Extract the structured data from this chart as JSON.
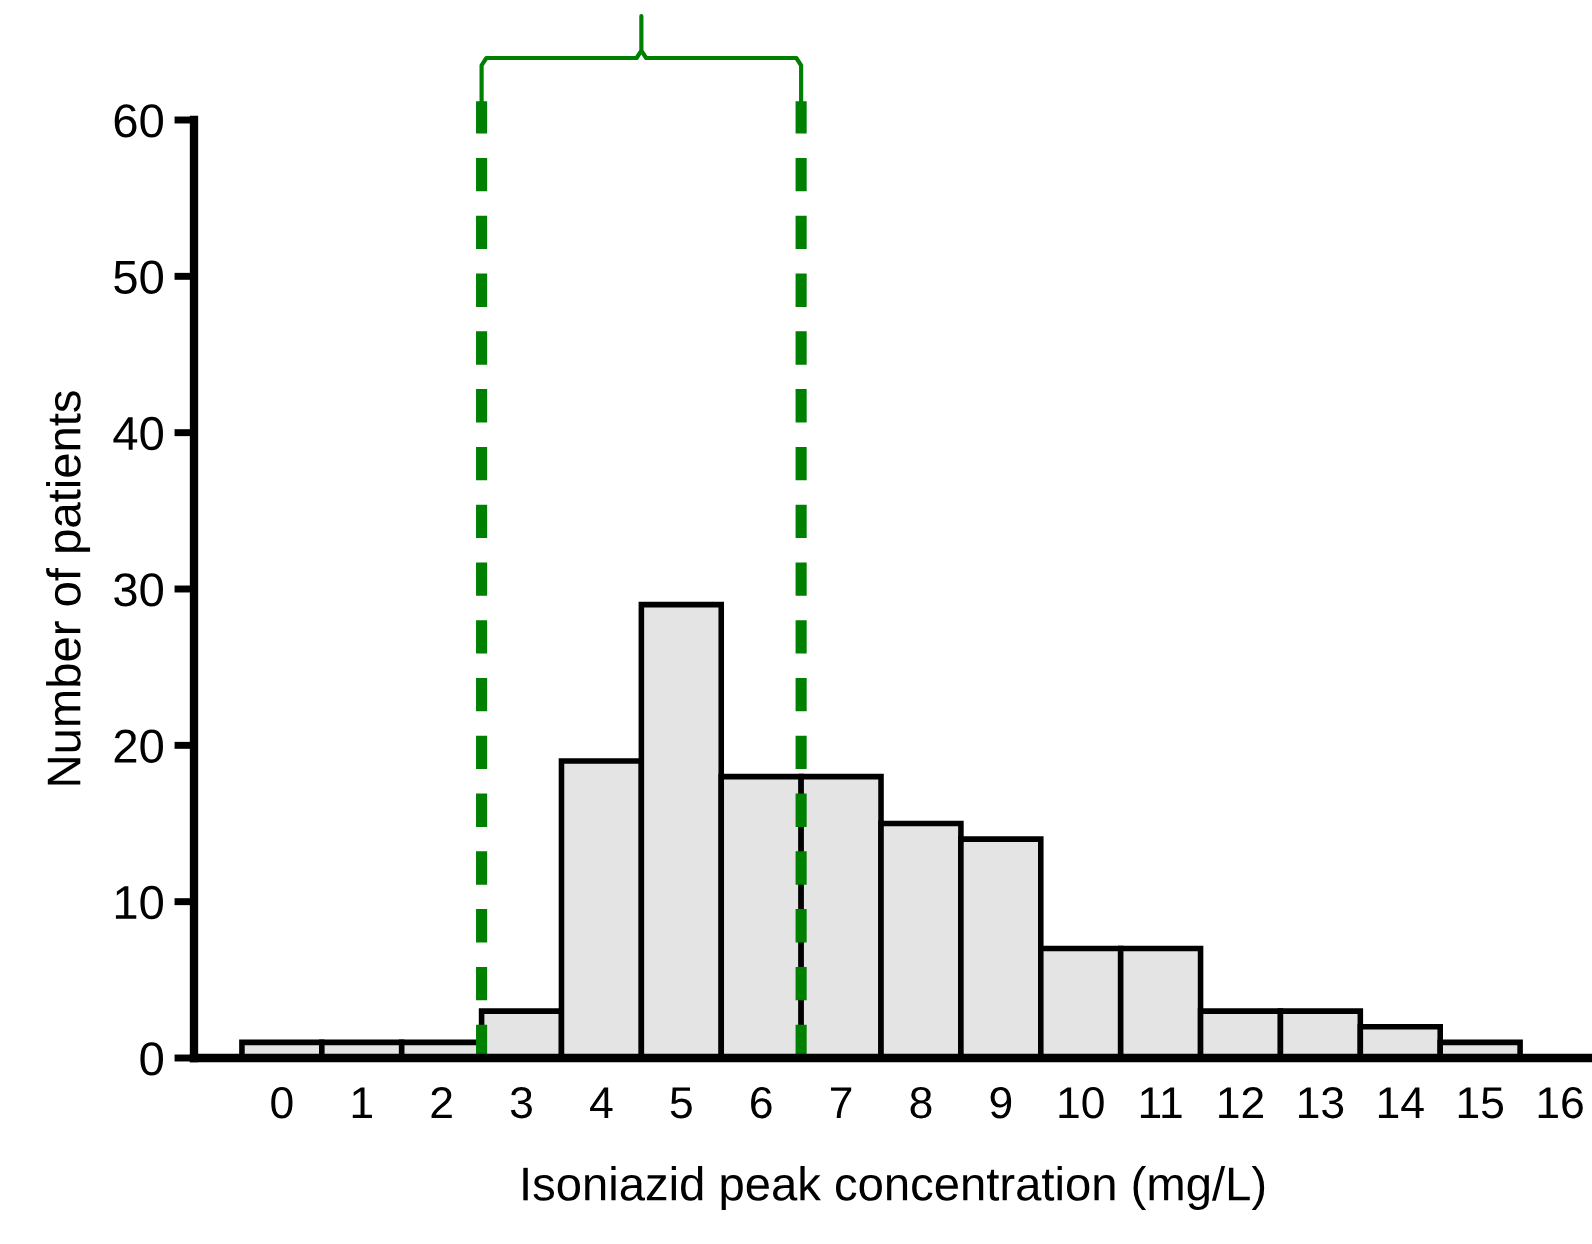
{
  "chart_data": {
    "type": "histogram",
    "xlabel": "Isoniazid peak concentration (mg/L)",
    "ylabel": "Number of patients",
    "bins": [
      -0.5,
      0.5,
      1.5,
      2.5,
      3.5,
      4.5,
      5.5,
      6.5,
      7.5,
      8.5,
      9.5,
      10.5,
      11.5,
      12.5,
      13.5,
      14.5,
      15.5
    ],
    "values": [
      1,
      1,
      1,
      3,
      19,
      29,
      18,
      18,
      15,
      14,
      7,
      7,
      3,
      3,
      2,
      1
    ],
    "color": "#e4e4e4",
    "xlim": [
      -1.1,
      16.4
    ],
    "xticks": [
      0,
      1,
      2,
      3,
      4,
      5,
      6,
      7,
      8,
      9,
      10,
      11,
      12,
      13,
      14,
      15,
      16
    ],
    "ylim": [
      0,
      60
    ],
    "yticks": [
      0,
      10,
      20,
      30,
      40,
      50,
      60
    ],
    "ref_lines": [
      {
        "axis": "x",
        "value": 2.5,
        "color": "#008000",
        "line_style": "dashed"
      },
      {
        "axis": "x",
        "value": 6.5,
        "color": "#008000",
        "line_style": "dashed"
      }
    ],
    "grid": false,
    "legend": false
  }
}
